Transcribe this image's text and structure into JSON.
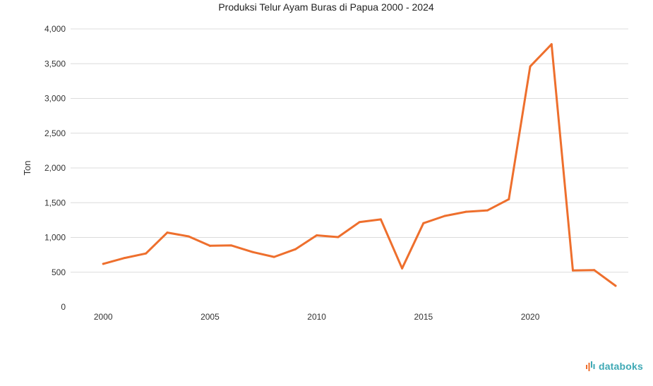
{
  "chart_data": {
    "type": "line",
    "title": "Produksi Telur Ayam Buras di Papua 2000 - 2024",
    "xlabel": "",
    "ylabel": "Ton",
    "xlim": [
      1999,
      2024
    ],
    "ylim": [
      0,
      4000
    ],
    "x_ticks": [
      2000,
      2005,
      2010,
      2015,
      2020
    ],
    "y_ticks": [
      0,
      500,
      1000,
      1500,
      2000,
      2500,
      3000,
      3500,
      4000
    ],
    "y_tick_labels": [
      "0",
      "500",
      "1,000",
      "1,500",
      "2,000",
      "2,500",
      "3,000",
      "3,500",
      "4,000"
    ],
    "grid": true,
    "series": [
      {
        "color": "#ee6f2d",
        "x": [
          2000,
          2001,
          2002,
          2003,
          2004,
          2005,
          2006,
          2007,
          2008,
          2009,
          2010,
          2011,
          2012,
          2013,
          2014,
          2015,
          2016,
          2017,
          2018,
          2019,
          2020,
          2021,
          2022,
          2023,
          2024
        ],
        "values": [
          620,
          705,
          770,
          1070,
          1015,
          880,
          885,
          790,
          720,
          830,
          1030,
          1005,
          1220,
          1260,
          555,
          1205,
          1310,
          1370,
          1390,
          1550,
          3460,
          3780,
          525,
          530,
          305
        ]
      }
    ]
  },
  "brand": {
    "name": "databoks",
    "icon": "databoks-logo-icon",
    "color": "#3fa9b5"
  }
}
